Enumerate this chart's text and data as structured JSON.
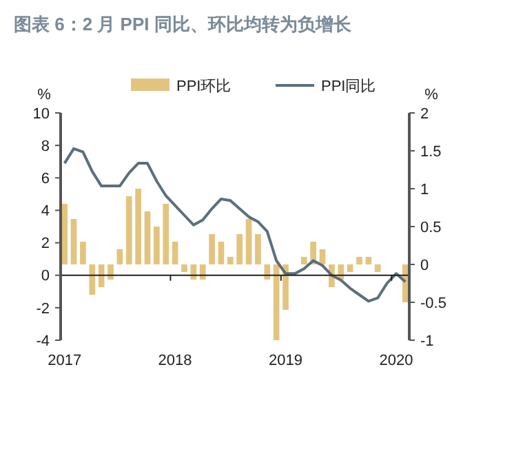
{
  "chart_data": {
    "type": "bar",
    "title": "图表 6：2 月 PPI 同比、环比均转为负增长",
    "categories": [
      "2017",
      null,
      null,
      null,
      null,
      null,
      null,
      null,
      null,
      null,
      null,
      null,
      "2018",
      null,
      null,
      null,
      null,
      null,
      null,
      null,
      null,
      null,
      null,
      null,
      "2019",
      null,
      null,
      null,
      null,
      null,
      null,
      null,
      null,
      null,
      null,
      null,
      "2020",
      null
    ],
    "series": [
      {
        "name": "PPI环比",
        "axis": "y2",
        "color": "#e3c47f",
        "values": [
          0.8,
          0.6,
          0.3,
          -0.4,
          -0.3,
          -0.2,
          0.2,
          0.9,
          1.0,
          0.7,
          0.5,
          0.8,
          0.3,
          -0.1,
          -0.2,
          -0.2,
          0.4,
          0.3,
          0.1,
          0.4,
          0.6,
          0.4,
          -0.2,
          -1.0,
          -0.6,
          0.0,
          0.1,
          0.3,
          0.2,
          -0.3,
          -0.2,
          -0.1,
          0.1,
          0.1,
          -0.1,
          0.0,
          0.0,
          -0.5
        ]
      },
      {
        "name": "PPI同比",
        "type": "line",
        "axis": "y",
        "color": "#5b6f7c",
        "values": [
          6.9,
          7.8,
          7.6,
          6.4,
          5.5,
          5.5,
          5.5,
          6.3,
          6.9,
          6.9,
          5.8,
          4.9,
          4.3,
          3.7,
          3.1,
          3.4,
          4.1,
          4.7,
          4.6,
          4.1,
          3.6,
          3.3,
          2.7,
          0.9,
          0.1,
          0.1,
          0.4,
          0.9,
          0.6,
          0.0,
          -0.3,
          -0.8,
          -1.2,
          -1.6,
          -1.4,
          -0.5,
          0.1,
          -0.4
        ]
      }
    ],
    "ylabel": "%",
    "y2label": "%",
    "ylim": [
      -4,
      10
    ],
    "yticks": [
      -4,
      -2,
      0,
      2,
      4,
      6,
      8,
      10
    ],
    "y2lim": [
      -1,
      2
    ],
    "y2ticks": [
      -1,
      -0.5,
      0,
      0.5,
      1,
      1.5,
      2
    ],
    "legend": "top",
    "marker": "none",
    "line_style": "solid"
  }
}
